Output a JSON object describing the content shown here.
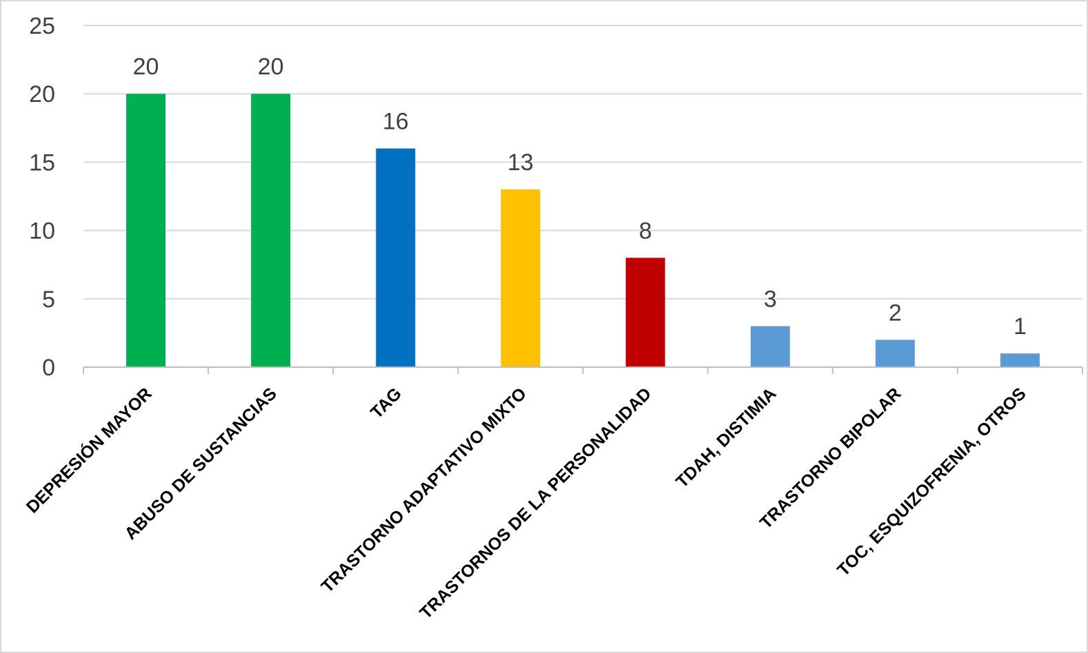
{
  "chart_data": {
    "type": "bar",
    "title": "",
    "xlabel": "",
    "ylabel": "",
    "categories": [
      "DEPRESIÓN MAYOR",
      "ABUSO DE SUSTANCIAS",
      "TAG",
      "TRASTORNO ADAPTATIVO MIXTO",
      "TRASTORNOS DE LA PERSONALIDAD",
      "TDAH, DISTIMIA",
      "TRASTORNO BIPOLAR",
      "TOC, ESQUIZOFRENIA, OTROS"
    ],
    "values": [
      20,
      20,
      16,
      13,
      8,
      3,
      2,
      1
    ],
    "bar_colors": [
      "#00b050",
      "#00b050",
      "#0070c0",
      "#ffc000",
      "#c00000",
      "#5b9bd5",
      "#5b9bd5",
      "#5b9bd5"
    ],
    "ylim": [
      0,
      25
    ],
    "yticks": [
      0,
      5,
      10,
      15,
      20,
      25
    ],
    "grid": true,
    "data_labels": true,
    "legend": "none"
  }
}
